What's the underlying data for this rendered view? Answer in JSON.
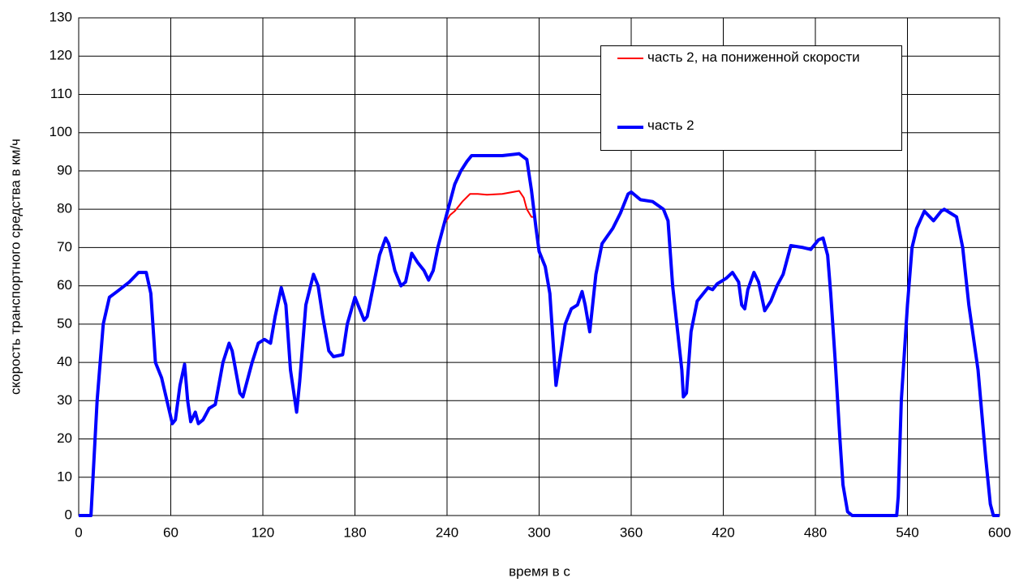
{
  "chart_data": {
    "type": "line",
    "xlabel": "время в с",
    "ylabel": "скорость транспортного средства в км/ч",
    "xlim": [
      0,
      600
    ],
    "xticks": [
      0,
      60,
      120,
      180,
      240,
      300,
      360,
      420,
      480,
      540,
      600
    ],
    "ylim": [
      0,
      130
    ],
    "yticks": [
      0,
      10,
      20,
      30,
      40,
      50,
      60,
      70,
      80,
      90,
      100,
      110,
      120,
      130
    ],
    "grid": true,
    "legend": "upper right",
    "series": [
      {
        "name": "часть 2, на пониженной скорости",
        "color": "#ff0000",
        "width": 2,
        "x": [
          238,
          242,
          245,
          250,
          255,
          260,
          266,
          276,
          287,
          290,
          292,
          295,
          297
        ],
        "values": [
          76,
          78.5,
          79.5,
          82,
          84,
          84,
          83.8,
          84,
          84.8,
          83,
          80,
          78,
          78
        ]
      },
      {
        "name": "часть 2",
        "color": "#0000ff",
        "width": 4,
        "x": [
          0,
          8,
          12,
          16,
          20,
          25,
          33,
          39,
          44,
          47,
          50,
          54,
          61,
          63,
          66,
          69,
          71,
          73,
          76,
          78,
          81,
          85,
          89,
          94,
          98,
          100,
          105,
          107,
          113,
          117,
          121,
          125,
          128,
          132,
          135,
          138,
          142,
          144,
          148,
          153,
          156,
          159,
          163,
          166,
          172,
          175,
          180,
          182,
          186,
          188,
          192,
          196,
          200,
          202,
          206,
          210,
          213,
          217,
          221,
          225,
          228,
          231,
          234,
          238,
          242,
          245,
          249,
          253,
          256,
          266,
          276,
          287,
          292,
          295,
          298,
          300,
          304,
          307,
          311,
          317,
          321,
          325,
          328,
          330,
          333,
          337,
          341,
          348,
          353,
          358,
          360,
          366,
          374,
          381,
          384,
          387,
          393,
          394,
          396,
          399,
          403,
          410,
          413,
          416,
          422,
          426,
          430,
          432,
          434,
          436,
          440,
          443,
          447,
          451,
          455,
          459,
          464,
          472,
          477,
          482,
          485,
          488,
          490,
          493,
          496,
          498,
          501,
          504,
          533,
          534,
          536,
          540,
          543,
          546,
          551,
          557,
          562,
          564,
          568,
          572,
          576,
          580,
          586,
          591,
          594,
          596,
          600
        ],
        "values": [
          0,
          0,
          30,
          50,
          57,
          58.5,
          61,
          63.5,
          63.5,
          58,
          40,
          36,
          24,
          25,
          34,
          39.5,
          30,
          24.5,
          27,
          24,
          25,
          28,
          29,
          40,
          45,
          43,
          32,
          31,
          40,
          45,
          46,
          45,
          52,
          59.5,
          55,
          38,
          27,
          35,
          55,
          63,
          60,
          52,
          43,
          41.5,
          42,
          50,
          57,
          55,
          51,
          52,
          60,
          68,
          72.5,
          71,
          64,
          60,
          61,
          68.5,
          66,
          64,
          61.5,
          64,
          70,
          76,
          82,
          86.5,
          90,
          92.5,
          94,
          94,
          94,
          94.5,
          93,
          85,
          75,
          69,
          65,
          58,
          34,
          50,
          54,
          55,
          58.5,
          55,
          48,
          63,
          71,
          75,
          79,
          84,
          84.5,
          82.5,
          82,
          80,
          77,
          60,
          38,
          31,
          32,
          48,
          56,
          59.5,
          59,
          60.5,
          62,
          63.5,
          61,
          55,
          54,
          59,
          63.5,
          61,
          53.5,
          56,
          60,
          63,
          70.5,
          70,
          69.5,
          72,
          72.5,
          68,
          58,
          40,
          20,
          8,
          1,
          0,
          0,
          5,
          30,
          55,
          70,
          75,
          79.5,
          77,
          79.5,
          80,
          79,
          78,
          70,
          55,
          38,
          15,
          3,
          0,
          0
        ]
      }
    ]
  }
}
